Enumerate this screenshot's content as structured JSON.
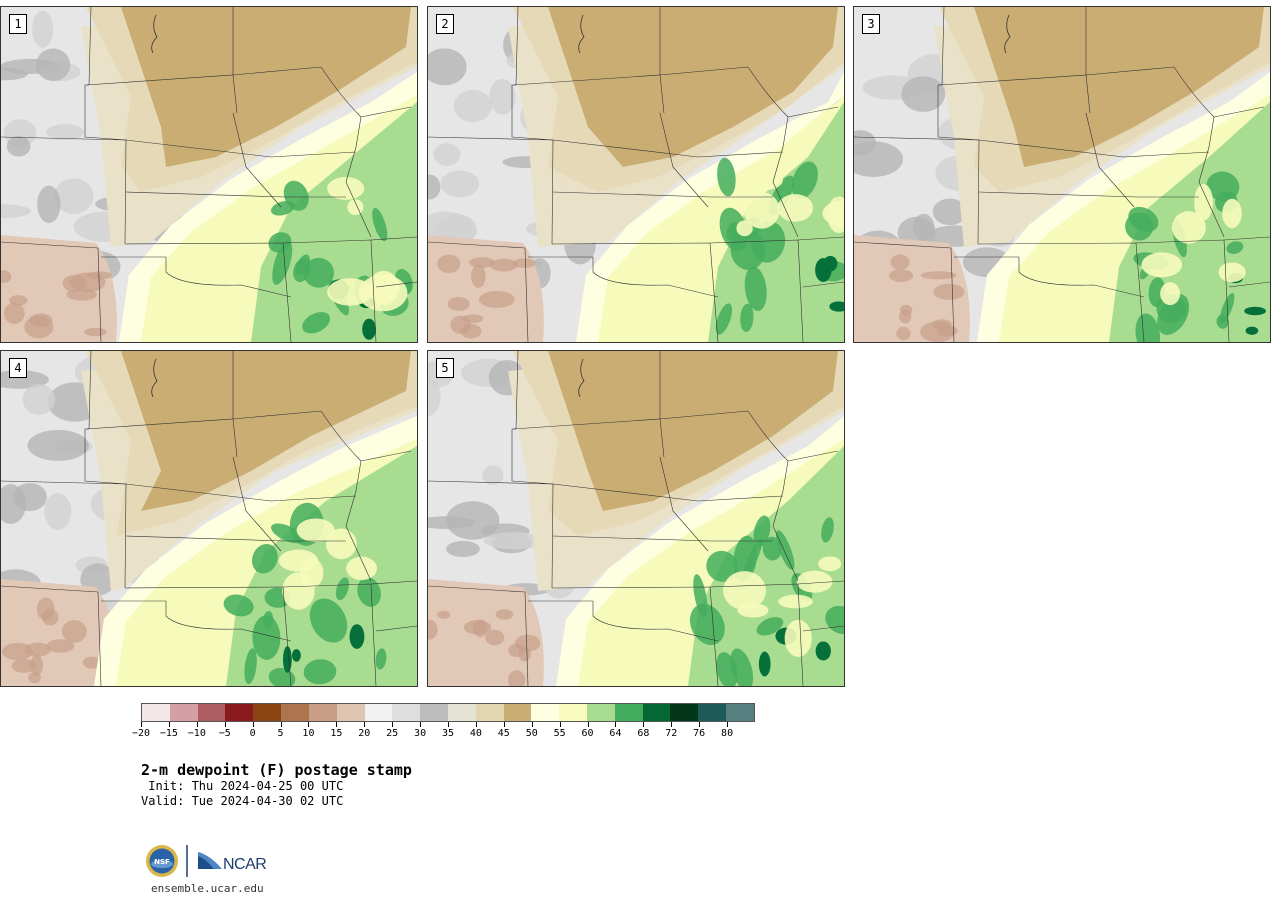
{
  "panels": [
    {
      "label": "1",
      "variant": 1
    },
    {
      "label": "2",
      "variant": 2
    },
    {
      "label": "3",
      "variant": 3
    },
    {
      "label": "4",
      "variant": 4
    },
    {
      "label": "5",
      "variant": 5
    }
  ],
  "colorbar": {
    "colors": [
      "#f3e6e6",
      "#d4a0a6",
      "#ad5c62",
      "#8b1a1f",
      "#8a4513",
      "#ac7550",
      "#c99f87",
      "#e0c5b2",
      "#f1f1f1",
      "#dedede",
      "#bdbdbd",
      "#e3e3d6",
      "#e3d5b0",
      "#c8ae72",
      "#fefee0",
      "#f8fcbe",
      "#a8dc90",
      "#44ad5d",
      "#056834",
      "#04361c",
      "#1f5a5a",
      "#587f7f"
    ],
    "tick_labels": [
      "−20",
      "−15",
      "−10",
      "−5",
      "0",
      "5",
      "10",
      "15",
      "20",
      "25",
      "30",
      "35",
      "40",
      "45",
      "50",
      "55",
      "60",
      "64",
      "68",
      "72",
      "76",
      "80"
    ]
  },
  "title": "2-m dewpoint (F) postage stamp",
  "init": " Init: Thu 2024-04-25 00 UTC",
  "valid": "Valid: Tue 2024-04-30 02 UTC",
  "logo": {
    "left_text": "NSF",
    "right_text": "NCAR"
  },
  "url": "ensemble.ucar.edu",
  "palette": {
    "gray_light": "#e6e6e6",
    "gray": "#d2d2d2",
    "gray_dark": "#b5b5b5",
    "tan_light": "#e6d9b8",
    "tan": "#c9ad73",
    "tan_pale": "#e9e2c8",
    "brown_light": "#e2c8b6",
    "brown": "#c8a08b",
    "yellow_pale": "#fefee0",
    "yellow": "#f6fbbb",
    "green_light": "#a8dc90",
    "green": "#44ad5d",
    "green_dark": "#05703a"
  }
}
